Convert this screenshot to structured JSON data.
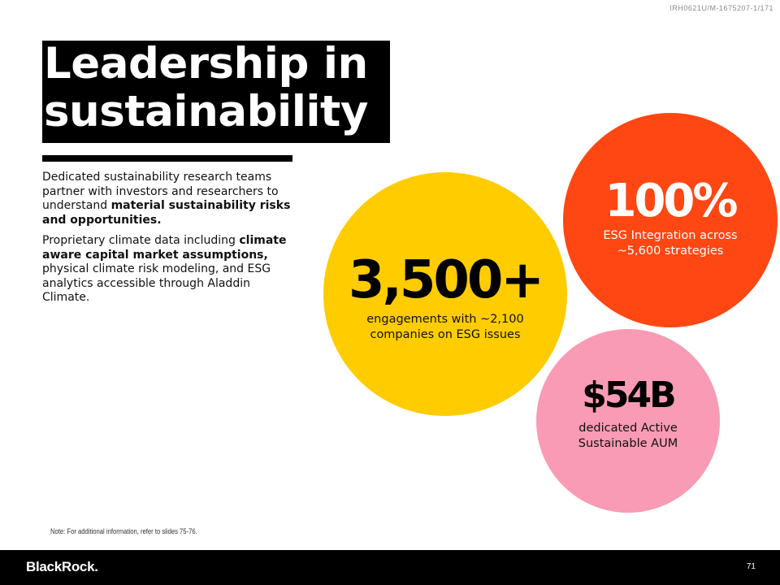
{
  "doc_id": "IRH0621U/M-1675207-1/171",
  "title": {
    "line1": "Leadership in",
    "line2": "sustainability"
  },
  "body": {
    "p1_text": "Dedicated sustainability research teams partner with investors and researchers to understand ",
    "p1_bold": "material sustainability risks and opportunities.",
    "p2_text1": "Proprietary climate data including ",
    "p2_bold": "climate aware capital market assumptions,",
    "p2_text2": " physical climate risk modeling, and ESG analytics accessible through Aladdin Climate."
  },
  "stats": {
    "engagements": {
      "value": "3,500+",
      "description": "engagements with ~2,100 companies on ESG issues",
      "color": "#ffcc00"
    },
    "integration": {
      "value": "100%",
      "description": "ESG Integration across ~5,600 strategies",
      "color": "#ff4713"
    },
    "aum": {
      "value": "$54B",
      "description": "dedicated Active Sustainable AUM",
      "color": "#f99bb4"
    }
  },
  "note": "Note: For additional information, refer to slides 75-76.",
  "footer": {
    "logo": "BlackRock.",
    "page_number": "71"
  }
}
